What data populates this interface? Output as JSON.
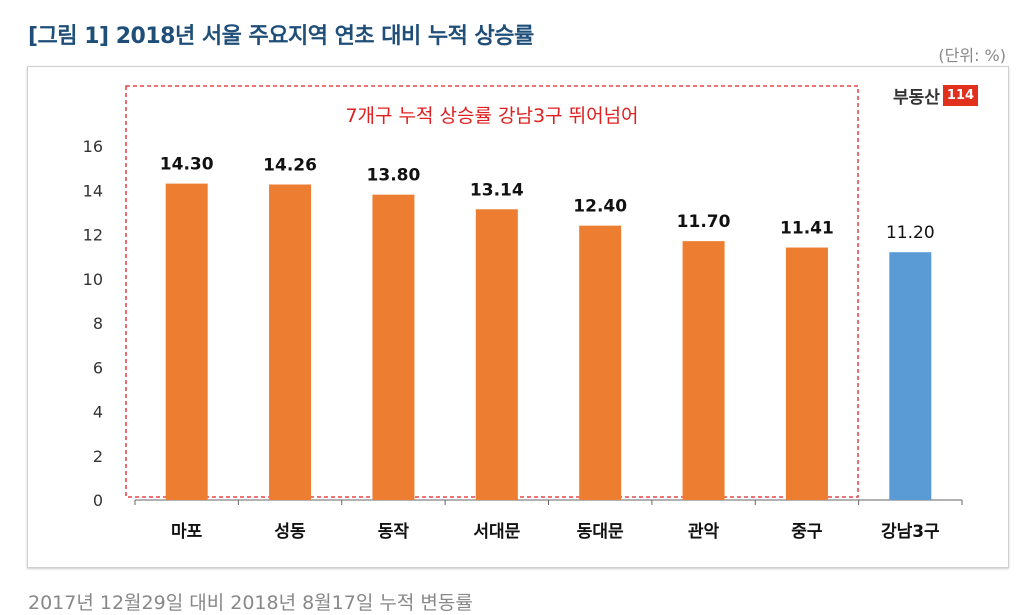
{
  "title": "[그림 1] 2018년 서울 주요지역 연초 대비 누적 상승률",
  "unit": "(단위: %)",
  "footer": "2017년 12월29일 대비 2018년 8월17일 누적 변동률",
  "logo": {
    "text": "부동산",
    "box": "114"
  },
  "chart_data": {
    "type": "bar",
    "categories": [
      "마포",
      "성동",
      "동작",
      "서대문",
      "동대문",
      "관악",
      "중구",
      "강남3구"
    ],
    "values": [
      14.3,
      14.26,
      13.8,
      13.14,
      12.4,
      11.7,
      11.41,
      11.2
    ],
    "data_labels": [
      "14.30",
      "14.26",
      "13.80",
      "13.14",
      "12.40",
      "11.70",
      "11.41",
      "11.20"
    ],
    "ylim": [
      0,
      16
    ],
    "yticks": [
      "0",
      "2",
      "4",
      "6",
      "8",
      "10",
      "12",
      "14",
      "16"
    ],
    "grid": false,
    "annotation": "7개구 누적 상승률 강남3구 뛰어넘어",
    "colors": {
      "highlight": "#ed7d31",
      "reference": "#5b9bd5",
      "annotation": "#e02020"
    }
  }
}
